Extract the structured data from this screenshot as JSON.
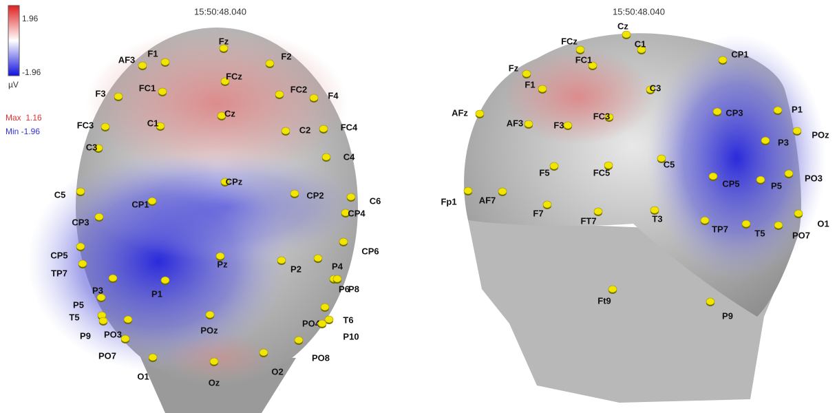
{
  "colorbar": {
    "max": "1.96",
    "min": "-1.96",
    "unit": "µV"
  },
  "stats": {
    "max": "Max  1.16",
    "min": "Min -1.96"
  },
  "views": [
    {
      "timestamp": "15:50:48.040",
      "electrodes": [
        "Fz",
        "F1",
        "AF3",
        "F2",
        "FCz",
        "FC1",
        "FC2",
        "F3",
        "F4",
        "Cz",
        "C1",
        "FC3",
        "FC4",
        "C2",
        "C3",
        "C4",
        "CPz",
        "C5",
        "CP2",
        "C6",
        "CP1",
        "CP4",
        "CP3",
        "CP6",
        "CP5",
        "TP7",
        "Pz",
        "P2",
        "P4",
        "P6",
        "P8",
        "P3",
        "P1",
        "P5",
        "T5",
        "T6",
        "POz",
        "PO4",
        "P9",
        "PO3",
        "P10",
        "PO7",
        "PO8",
        "O2",
        "O1",
        "Oz"
      ]
    },
    {
      "timestamp": "15:50:48.040",
      "electrodes": [
        "Cz",
        "FCz",
        "C1",
        "CP1",
        "FC1",
        "Fz",
        "F1",
        "C3",
        "P1",
        "CP3",
        "AFz",
        "FC3",
        "AF3",
        "F3",
        "POz",
        "P3",
        "C5",
        "F5",
        "FC5",
        "PO3",
        "CP5",
        "P5",
        "Fp1",
        "AF7",
        "F7",
        "FT7",
        "T3",
        "O1",
        "TP7",
        "T5",
        "PO7",
        "Ft9",
        "P9"
      ]
    }
  ]
}
